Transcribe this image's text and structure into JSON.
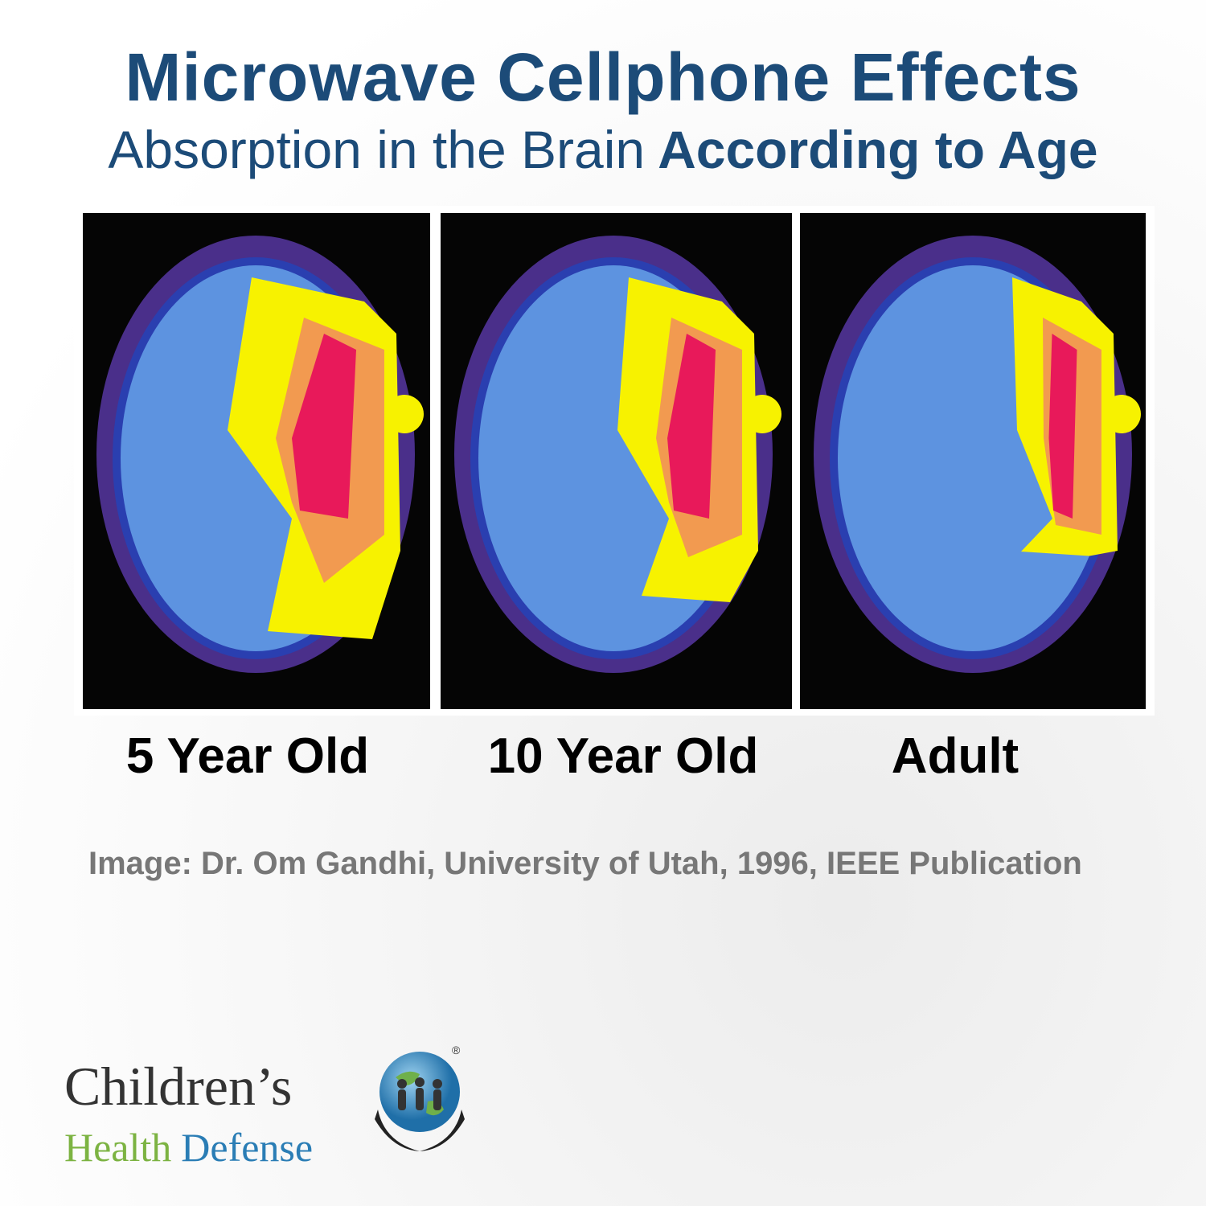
{
  "header": {
    "title": "Microwave Cellphone Effects",
    "subtitle_regular": "Absorption in the Brain",
    "subtitle_bold": "According to Age"
  },
  "panels": [
    {
      "label": "5 Year Old"
    },
    {
      "label": "10 Year Old"
    },
    {
      "label": "Adult"
    }
  ],
  "credit": "Image: Dr. Om Gandhi, University of Utah, 1996, IEEE Publication",
  "logo": {
    "line1": "Children’s",
    "word_health": "Health",
    "word_defense": "Defense",
    "mark": "®"
  }
}
